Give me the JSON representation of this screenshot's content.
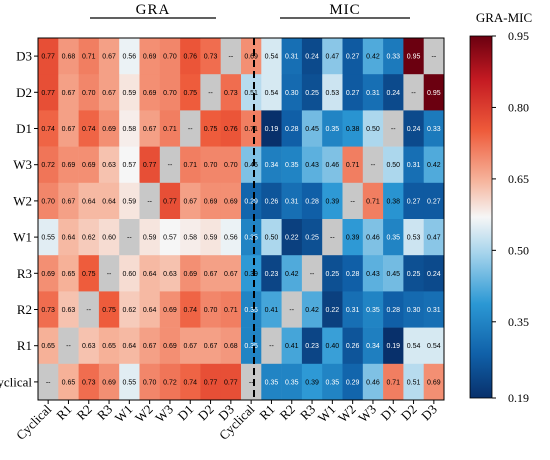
{
  "chart_data": {
    "type": "heatmap",
    "row_labels": [
      "D3",
      "D2",
      "D1",
      "W3",
      "W2",
      "W1",
      "R3",
      "R2",
      "R1",
      "Cyclical"
    ],
    "col_labels": [
      "Cyclical",
      "R1",
      "R2",
      "R3",
      "W1",
      "W2",
      "W3",
      "D1",
      "D2",
      "D3",
      "Cyclical",
      "R1",
      "R2",
      "R3",
      "W1",
      "W2",
      "W3",
      "D1",
      "D2",
      "D3"
    ],
    "groups": [
      {
        "name": "GRA"
      },
      {
        "name": "MIC"
      }
    ],
    "colorbar": {
      "title": "GRA-MIC",
      "min": 0.19,
      "max": 0.95,
      "ticks": [
        "0.19",
        "0.35",
        "0.50",
        "0.65",
        "0.80",
        "0.95"
      ]
    },
    "missing_label": "--",
    "values": [
      [
        0.77,
        0.68,
        0.71,
        0.67,
        0.56,
        0.69,
        0.7,
        0.76,
        0.73,
        null,
        0.69,
        0.54,
        0.31,
        0.24,
        0.47,
        0.27,
        0.42,
        0.33,
        0.95,
        null
      ],
      [
        0.77,
        0.67,
        0.7,
        0.67,
        0.59,
        0.69,
        0.7,
        0.75,
        null,
        0.73,
        0.51,
        0.54,
        0.3,
        0.25,
        0.53,
        0.27,
        0.31,
        0.24,
        null,
        0.95
      ],
      [
        0.74,
        0.67,
        0.74,
        0.69,
        0.58,
        0.67,
        0.71,
        null,
        0.75,
        0.76,
        0.71,
        0.19,
        0.28,
        0.45,
        0.35,
        0.38,
        0.5,
        null,
        0.24,
        0.33
      ],
      [
        0.72,
        0.69,
        0.69,
        0.63,
        0.57,
        0.77,
        null,
        0.71,
        0.7,
        0.7,
        0.46,
        0.34,
        0.35,
        0.43,
        0.46,
        0.71,
        null,
        0.5,
        0.31,
        0.42
      ],
      [
        0.7,
        0.67,
        0.64,
        0.64,
        0.59,
        null,
        0.77,
        0.67,
        0.69,
        0.69,
        0.29,
        0.26,
        0.31,
        0.28,
        0.39,
        null,
        0.71,
        0.38,
        0.27,
        0.27
      ],
      [
        0.55,
        0.64,
        0.62,
        0.6,
        null,
        0.59,
        0.57,
        0.58,
        0.59,
        0.56,
        0.35,
        0.5,
        0.22,
        0.25,
        null,
        0.39,
        0.46,
        0.35,
        0.53,
        0.47
      ],
      [
        0.69,
        0.65,
        0.75,
        null,
        0.6,
        0.64,
        0.63,
        0.69,
        0.67,
        0.67,
        0.39,
        0.23,
        0.42,
        null,
        0.25,
        0.28,
        0.43,
        0.45,
        0.25,
        0.24
      ],
      [
        0.73,
        0.63,
        null,
        0.75,
        0.62,
        0.64,
        0.69,
        0.74,
        0.7,
        0.71,
        0.35,
        0.41,
        null,
        0.42,
        0.22,
        0.31,
        0.35,
        0.28,
        0.3,
        0.31
      ],
      [
        0.65,
        null,
        0.63,
        0.65,
        0.64,
        0.67,
        0.69,
        0.67,
        0.67,
        0.68,
        0.35,
        null,
        0.41,
        0.23,
        0.4,
        0.26,
        0.34,
        0.19,
        0.54,
        0.54
      ],
      [
        null,
        0.65,
        0.73,
        0.69,
        0.55,
        0.7,
        0.72,
        0.74,
        0.77,
        0.77,
        null,
        0.35,
        0.35,
        0.39,
        0.35,
        0.29,
        0.46,
        0.71,
        0.51,
        0.69
      ]
    ]
  }
}
